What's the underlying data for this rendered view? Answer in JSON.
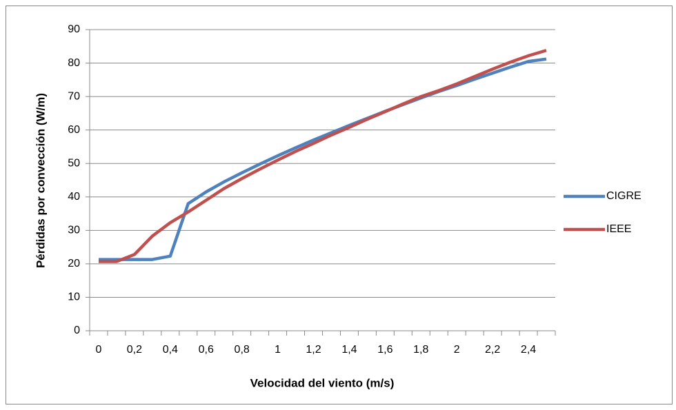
{
  "chart_data": {
    "type": "line",
    "x_label": "Velocidad del viento (m/s)",
    "y_label": "Pérdidas por convección (W/m)",
    "categories": [
      "0",
      null,
      "0,2",
      null,
      "0,4",
      null,
      "0,6",
      null,
      "0,8",
      null,
      "1",
      null,
      "1,2",
      null,
      "1,4",
      null,
      "1,6",
      null,
      "1,8",
      null,
      "2",
      null,
      "2,2",
      null,
      "2,4",
      null
    ],
    "series": [
      {
        "name": "CIGRE",
        "color": "#4f81bd",
        "values": [
          21.3,
          21.3,
          21.3,
          21.3,
          22.3,
          38,
          41.5,
          44.5,
          47.2,
          49.8,
          52.3,
          54.7,
          57,
          59.2,
          61.4,
          63.5,
          65.6,
          67.6,
          69.6,
          71.5,
          73.3,
          75.2,
          77,
          78.8,
          80.5,
          81.2
        ]
      },
      {
        "name": "IEEE",
        "color": "#c0504d",
        "values": [
          20.7,
          20.7,
          22.8,
          28.3,
          32.3,
          35.5,
          39,
          42.5,
          45.5,
          48.3,
          51,
          53.6,
          56,
          58.5,
          60.8,
          63.2,
          65.5,
          67.8,
          70,
          71.8,
          73.8,
          76,
          78.2,
          80.3,
          82.2,
          83.8
        ]
      }
    ],
    "ylim": [
      0,
      90
    ],
    "yticks": [
      0,
      10,
      20,
      30,
      40,
      50,
      60,
      70,
      80,
      90
    ],
    "grid": true,
    "legend": "right"
  }
}
